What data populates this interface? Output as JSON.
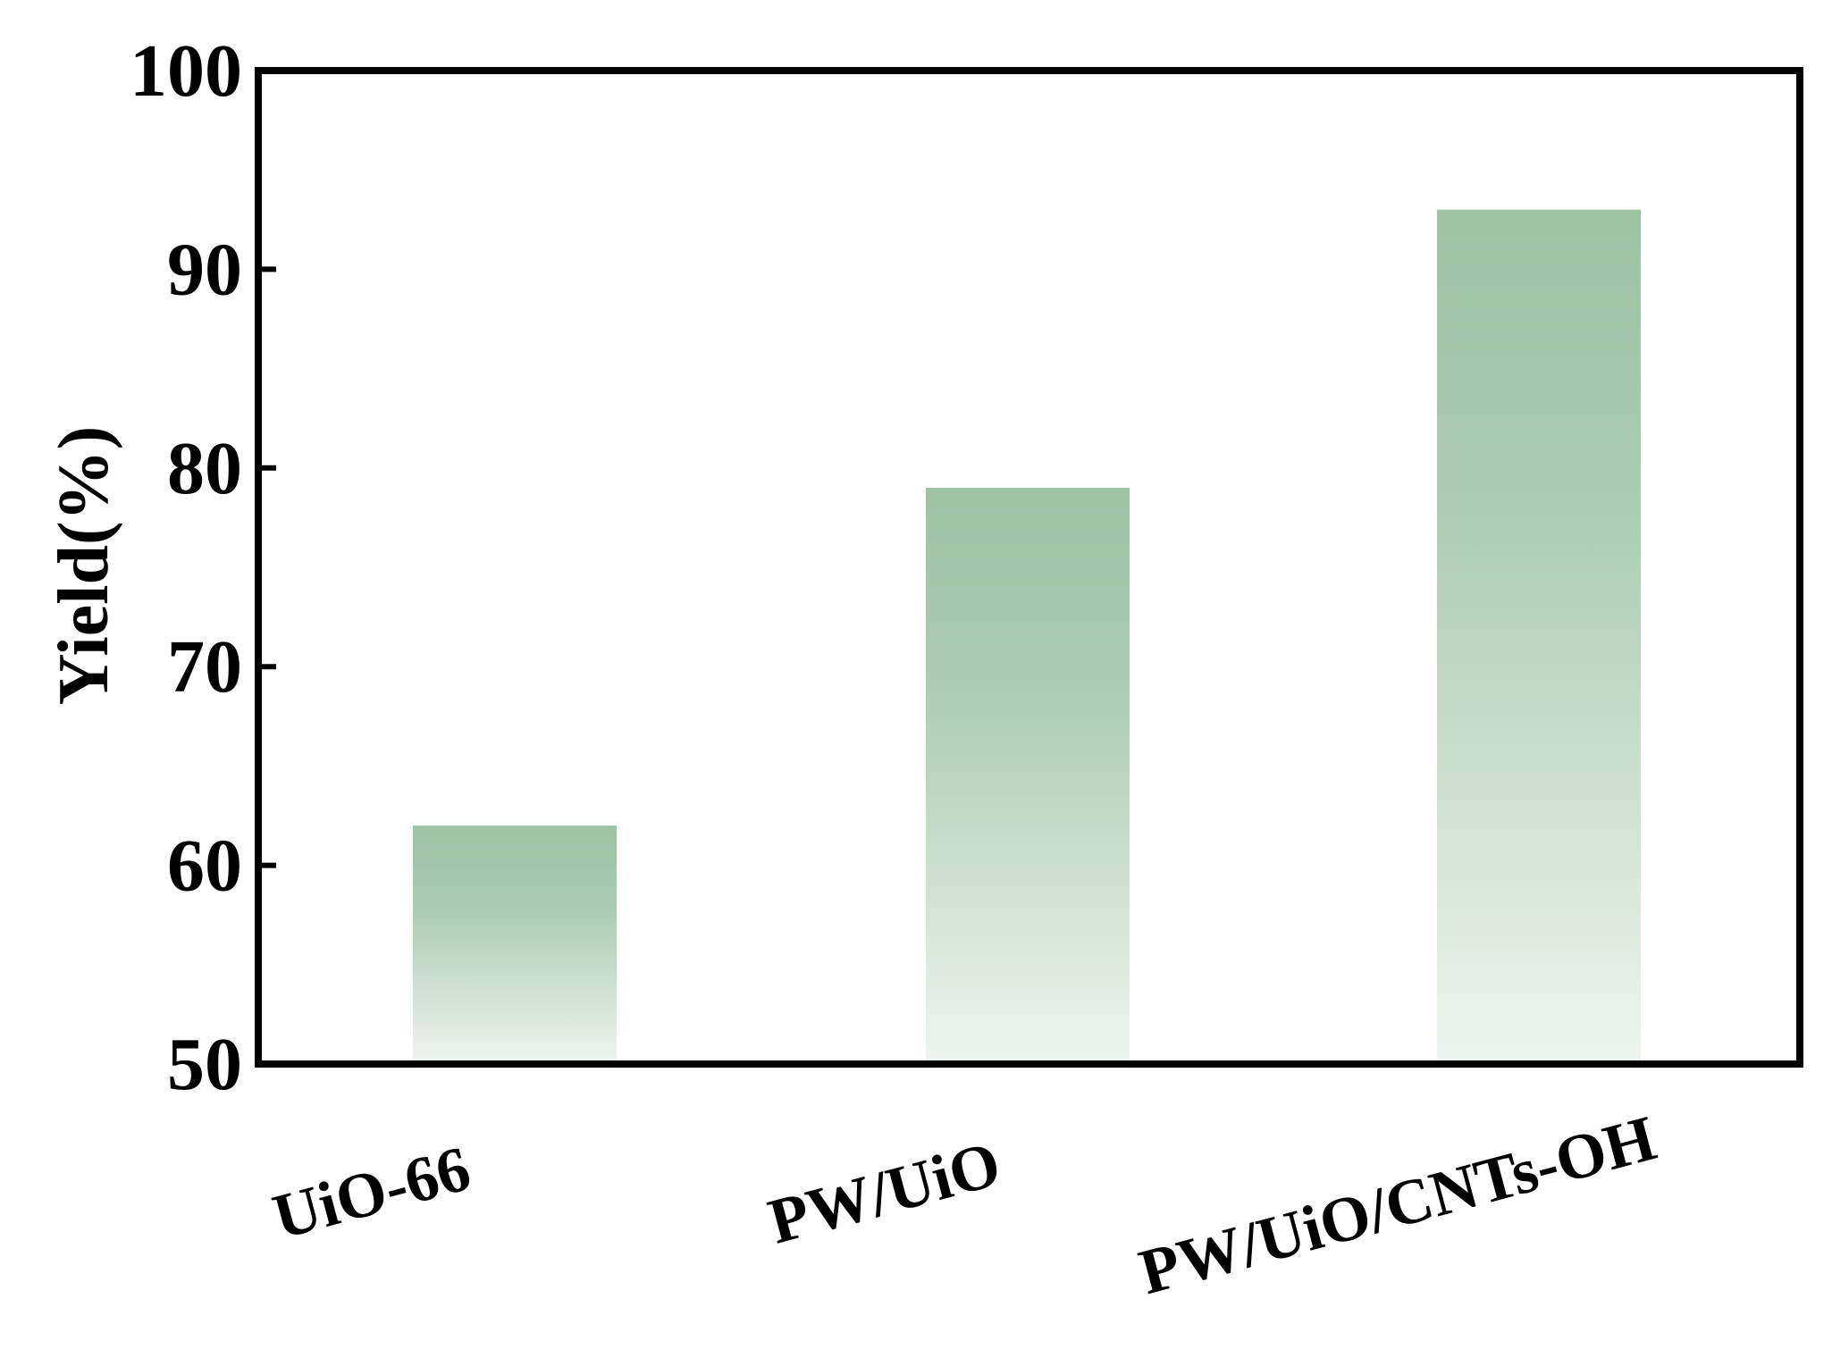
{
  "chart_data": {
    "type": "bar",
    "title": "",
    "xlabel": "",
    "ylabel": "Yield(%)",
    "categories": [
      "UiO-66",
      "PW/UiO",
      "PW/UiO/CNTs-OH"
    ],
    "values": [
      62,
      79,
      93
    ],
    "ylim": [
      50,
      100
    ],
    "yticks": [
      "50",
      "60",
      "70",
      "80",
      "90",
      "100"
    ],
    "grid": false,
    "legend": "none",
    "colors": {
      "bar_top": "#9dc2a4",
      "bar_bottom": "#eff4f0",
      "axis": "#000000"
    }
  }
}
